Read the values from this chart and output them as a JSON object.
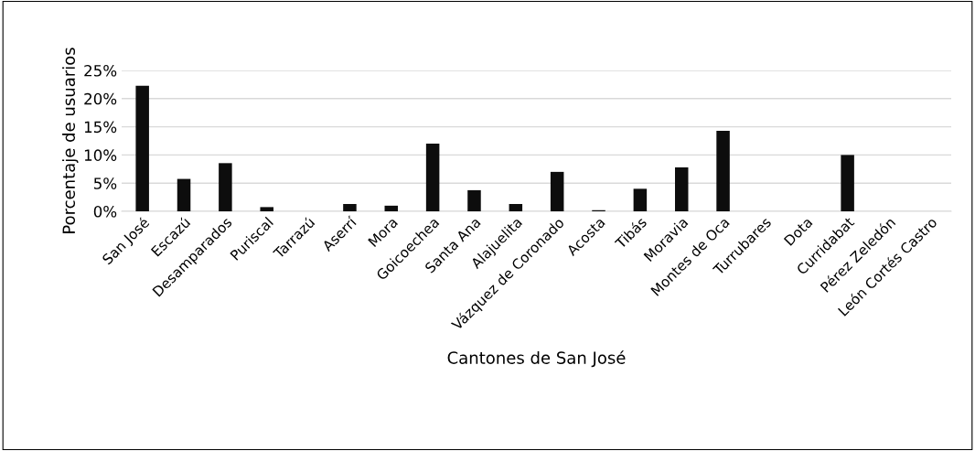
{
  "chart_data": {
    "type": "bar",
    "xlabel": "Cantones de San José",
    "ylabel": "Porcentaje de usuarios",
    "categories": [
      "San José",
      "Escazú",
      "Desamparados",
      "Puriscal",
      "Tarrazú",
      "Aserrí",
      "Mora",
      "Goicoechea",
      "Santa Ana",
      "Alajuelita",
      "Vázquez de Coronado",
      "Acosta",
      "Tibás",
      "Moravia",
      "Montes de Oca",
      "Turrubares",
      "Dota",
      "Curridabat",
      "Pérez Zeledón",
      "León Cortés Castro"
    ],
    "values": [
      22.3,
      5.75,
      8.55,
      0.75,
      0,
      1.3,
      1.0,
      12.0,
      3.75,
      1.3,
      7.0,
      0.2,
      4.0,
      7.8,
      14.3,
      0,
      0,
      10.0,
      0,
      0
    ],
    "color": "#0d0d0d",
    "ylim": [
      0,
      25
    ],
    "yticks": [
      {
        "value": 0,
        "label": "0%"
      },
      {
        "value": 5,
        "label": "5%"
      },
      {
        "value": 10,
        "label": "10%"
      },
      {
        "value": 15,
        "label": "15%"
      },
      {
        "value": 20,
        "label": "20%"
      },
      {
        "value": 25,
        "label": "25%"
      }
    ],
    "grid": "y",
    "legend": false
  }
}
